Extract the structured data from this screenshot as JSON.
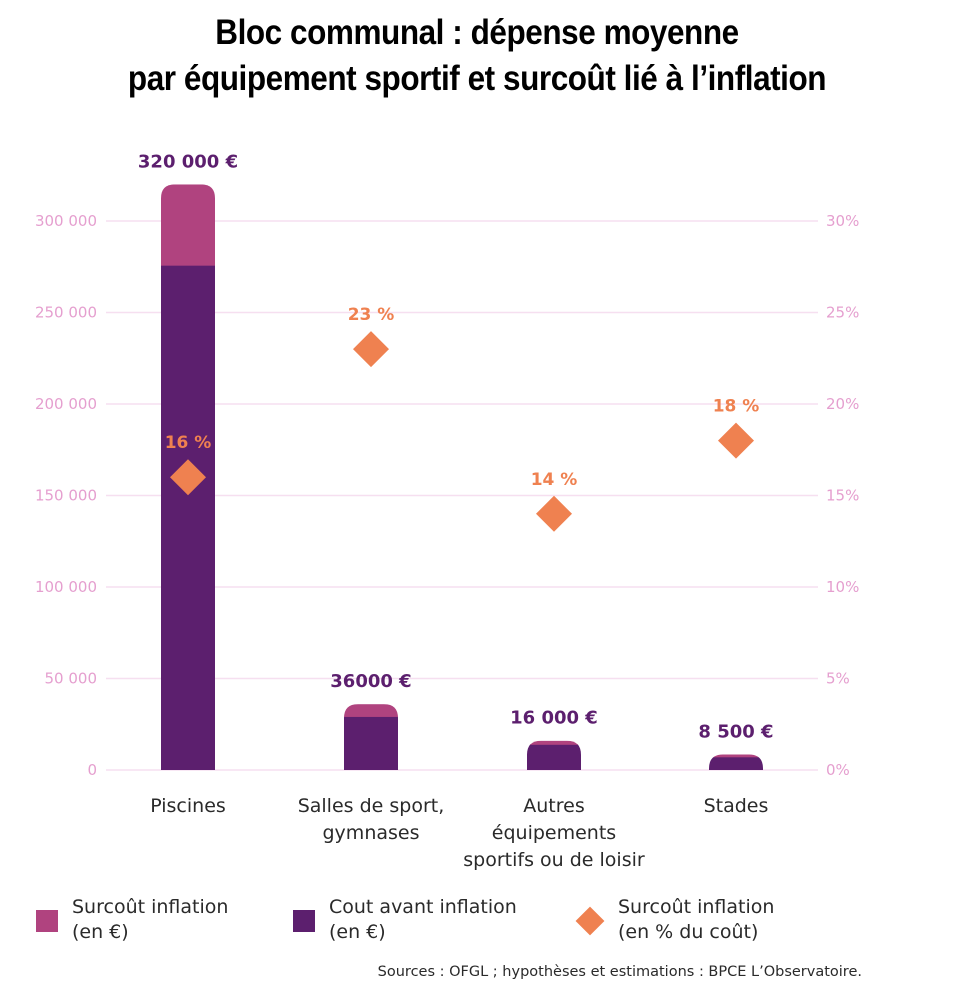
{
  "title": {
    "line1": "Bloc communal : dépense moyenne",
    "line2": "par équipement sportif et surcoût lié à l’inflation"
  },
  "colors": {
    "surcout_eur": "#b0437f",
    "avant_inflation": "#5c1f6e",
    "surcout_pct": "#ef8150",
    "grid": "#f6dff0",
    "axis_text": "#e59fcf"
  },
  "chart_data": {
    "type": "bar",
    "stacked": true,
    "title": "Bloc communal : dépense moyenne par équipement sportif et surcoût lié à l’inflation",
    "categories": [
      "Piscines",
      "Salles de sport, gymnases",
      "Autres équipements sportifs ou de loisir",
      "Stades"
    ],
    "category_lines": [
      [
        "Piscines"
      ],
      [
        "Salles de sport,",
        "gymnases"
      ],
      [
        "Autres",
        "équipements",
        "sportifs ou de loisir"
      ],
      [
        "Stades"
      ]
    ],
    "series": [
      {
        "name": "Cout avant inflation (en €)",
        "axis": "left",
        "type": "bar",
        "values": [
          275862,
          29268,
          14035,
          7203
        ]
      },
      {
        "name": "Surcoût inflation (en €)",
        "axis": "left",
        "type": "bar",
        "values": [
          44138,
          6732,
          1965,
          1297
        ]
      },
      {
        "name": "Surcoût inflation (en % du coût)",
        "axis": "right",
        "type": "scatter",
        "marker": "diamond",
        "values": [
          16,
          23,
          14,
          18
        ]
      }
    ],
    "totals": [
      320000,
      36000,
      16000,
      8500
    ],
    "total_labels": [
      "320 000 €",
      "36000 €",
      "16 000 €",
      "8 500 €"
    ],
    "pct_labels": [
      "16 %",
      "23 %",
      "14 %",
      "18 %"
    ],
    "y_left": {
      "ylim": [
        0,
        300000
      ],
      "ticks": [
        0,
        50000,
        100000,
        150000,
        200000,
        250000,
        300000
      ],
      "tick_labels": [
        "0",
        "50 000",
        "100 000",
        "150 000",
        "200 000",
        "250 000",
        "300 000"
      ]
    },
    "y_right": {
      "ylim": [
        0,
        30
      ],
      "ticks": [
        0,
        5,
        10,
        15,
        20,
        25,
        30
      ],
      "tick_labels": [
        "0%",
        "5%",
        "10%",
        "15%",
        "20%",
        "25%",
        "30%"
      ]
    },
    "xlabel": "",
    "ylabel": "",
    "grid": true,
    "legend_position": "bottom"
  },
  "legend": [
    {
      "label1": "Surcoût inflation",
      "label2": "(en €)"
    },
    {
      "label1": "Cout avant inflation",
      "label2": "(en €)"
    },
    {
      "label1": "Surcoût inflation",
      "label2": "(en % du coût)"
    }
  ],
  "source": "Sources : OFGL ; hypothèses et estimations : BPCE L’Observatoire."
}
